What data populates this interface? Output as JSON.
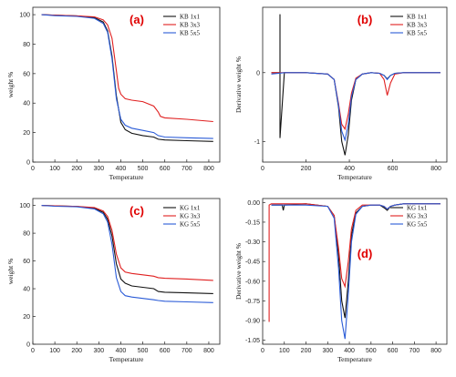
{
  "colors": {
    "black": "#111111",
    "red": "#e02020",
    "blue": "#2a5bd7",
    "label": "#e00000"
  },
  "chart_data": [
    {
      "type": "line",
      "panel_label": "(a)",
      "xlabel": "Temperature",
      "ylabel": "weight %",
      "xlim": [
        0,
        850
      ],
      "ylim": [
        0,
        105
      ],
      "xticks": [
        "0",
        "100",
        "200",
        "300",
        "400",
        "500",
        "600",
        "700",
        "800"
      ],
      "yticks": [
        "0",
        "20",
        "40",
        "60",
        "80",
        "100"
      ],
      "xtick_values": [
        0,
        100,
        200,
        300,
        400,
        500,
        600,
        700,
        800
      ],
      "ytick_values": [
        0,
        20,
        40,
        60,
        80,
        100
      ],
      "legend_position": "top-right",
      "series": [
        {
          "name": "KB 1x1",
          "color": "black",
          "x": [
            40,
            100,
            200,
            280,
            320,
            340,
            360,
            380,
            400,
            420,
            450,
            500,
            550,
            570,
            600,
            700,
            820
          ],
          "y": [
            100,
            99.6,
            99.2,
            98,
            95,
            89,
            72,
            45,
            27,
            22,
            19.5,
            18,
            17,
            15.5,
            15,
            14.5,
            14
          ]
        },
        {
          "name": "KB 3x3",
          "color": "red",
          "x": [
            40,
            100,
            200,
            280,
            320,
            340,
            360,
            380,
            390,
            400,
            420,
            450,
            500,
            550,
            570,
            580,
            600,
            700,
            820
          ],
          "y": [
            100,
            99.6,
            99.2,
            98.5,
            96.5,
            93,
            84,
            62,
            50,
            46,
            43,
            42,
            41,
            38,
            34,
            31,
            30,
            29,
            27.5
          ]
        },
        {
          "name": "KB 5x5",
          "color": "blue",
          "x": [
            40,
            100,
            200,
            280,
            320,
            340,
            360,
            380,
            400,
            420,
            450,
            500,
            550,
            570,
            600,
            700,
            820
          ],
          "y": [
            100,
            99.3,
            98.8,
            97.5,
            94,
            88,
            70,
            43,
            29,
            25,
            23,
            21.5,
            20,
            18,
            17,
            16.5,
            16
          ]
        }
      ]
    },
    {
      "type": "line",
      "panel_label": "(b)",
      "xlabel": "Temperature",
      "ylabel": "Derivative weight %",
      "xlim": [
        0,
        850
      ],
      "ylim": [
        -1.3,
        0.95
      ],
      "xticks": [
        "0",
        "200",
        "400",
        "600",
        "800"
      ],
      "yticks": [
        "-1",
        "0"
      ],
      "xtick_values": [
        0,
        200,
        400,
        600,
        800
      ],
      "ytick_values": [
        -1,
        0
      ],
      "legend_position": "top-right",
      "series": [
        {
          "name": "KB 1x1",
          "color": "black",
          "x": [
            40,
            80,
            80,
            80,
            100,
            200,
            300,
            330,
            350,
            365,
            380,
            395,
            410,
            430,
            460,
            500,
            540,
            560,
            575,
            590,
            610,
            650,
            820
          ],
          "y": [
            0,
            0,
            0.85,
            -0.95,
            0,
            0,
            -0.02,
            -0.1,
            -0.5,
            -1.0,
            -1.2,
            -0.9,
            -0.4,
            -0.1,
            -0.02,
            0,
            -0.01,
            -0.04,
            -0.09,
            -0.04,
            -0.01,
            0,
            0
          ]
        },
        {
          "name": "KB 3x3",
          "color": "red",
          "x": [
            40,
            100,
            200,
            300,
            330,
            350,
            365,
            380,
            395,
            410,
            430,
            460,
            500,
            540,
            560,
            575,
            590,
            610,
            650,
            820
          ],
          "y": [
            0,
            0,
            0,
            -0.02,
            -0.1,
            -0.45,
            -0.75,
            -0.82,
            -0.6,
            -0.3,
            -0.08,
            -0.02,
            0,
            -0.01,
            -0.1,
            -0.33,
            -0.15,
            -0.02,
            0,
            0
          ]
        },
        {
          "name": "KB 5x5",
          "color": "blue",
          "x": [
            40,
            100,
            200,
            300,
            330,
            350,
            365,
            380,
            395,
            410,
            430,
            460,
            500,
            540,
            560,
            575,
            590,
            610,
            650,
            820
          ],
          "y": [
            -0.02,
            0,
            0,
            -0.02,
            -0.1,
            -0.48,
            -0.85,
            -0.98,
            -0.75,
            -0.35,
            -0.1,
            -0.02,
            0,
            -0.01,
            -0.04,
            -0.1,
            -0.04,
            -0.01,
            0,
            0
          ]
        }
      ]
    },
    {
      "type": "line",
      "panel_label": "(c)",
      "xlabel": "Temperature",
      "ylabel": "weight %",
      "xlim": [
        0,
        850
      ],
      "ylim": [
        0,
        105
      ],
      "xticks": [
        "0",
        "100",
        "200",
        "300",
        "400",
        "500",
        "600",
        "700",
        "800"
      ],
      "yticks": [
        "0",
        "20",
        "40",
        "60",
        "80",
        "100"
      ],
      "xtick_values": [
        0,
        100,
        200,
        300,
        400,
        500,
        600,
        700,
        800
      ],
      "ytick_values": [
        0,
        20,
        40,
        60,
        80,
        100
      ],
      "legend_position": "top-right",
      "series": [
        {
          "name": "KG 1x1",
          "color": "black",
          "x": [
            40,
            100,
            200,
            280,
            320,
            340,
            360,
            380,
            400,
            420,
            450,
            500,
            550,
            570,
            600,
            700,
            820
          ],
          "y": [
            100,
            99.7,
            99.3,
            98,
            95,
            90,
            78,
            58,
            47,
            44,
            42,
            41,
            40,
            38,
            37.5,
            37,
            36.5
          ]
        },
        {
          "name": "KG 3x3",
          "color": "red",
          "x": [
            40,
            100,
            200,
            280,
            320,
            340,
            360,
            380,
            400,
            420,
            450,
            500,
            550,
            570,
            600,
            700,
            820
          ],
          "y": [
            100,
            99.7,
            99.3,
            98.5,
            96,
            92,
            82,
            65,
            55,
            52,
            51,
            50,
            49,
            48,
            47.5,
            47,
            46
          ]
        },
        {
          "name": "KG 5x5",
          "color": "blue",
          "x": [
            40,
            100,
            200,
            280,
            320,
            340,
            360,
            380,
            400,
            420,
            450,
            500,
            550,
            570,
            600,
            700,
            820
          ],
          "y": [
            100,
            99.4,
            99,
            97.5,
            94,
            88,
            72,
            48,
            38,
            35,
            34,
            33,
            32,
            31.5,
            31,
            30.5,
            30
          ]
        }
      ]
    },
    {
      "type": "line",
      "panel_label": "(d)",
      "xlabel": "Temperature",
      "ylabel": "Derivative weight %",
      "xlim": [
        0,
        850
      ],
      "ylim": [
        -1.08,
        0.03
      ],
      "xticks": [
        "0",
        "100",
        "200",
        "300",
        "400",
        "500",
        "600",
        "700",
        "800"
      ],
      "yticks": [
        "0.00",
        "-0.15",
        "-0.30",
        "-0.45",
        "-0.60",
        "-0.75",
        "-0.90",
        "-1.05"
      ],
      "xtick_values": [
        0,
        100,
        200,
        300,
        400,
        500,
        600,
        700,
        800
      ],
      "ytick_values": [
        0,
        -0.15,
        -0.3,
        -0.45,
        -0.6,
        -0.75,
        -0.9,
        -1.05
      ],
      "legend_position": "top-right",
      "series": [
        {
          "name": "KG 1x1",
          "color": "black",
          "x": [
            40,
            60,
            90,
            95,
            100,
            200,
            300,
            330,
            350,
            365,
            380,
            395,
            410,
            430,
            460,
            500,
            540,
            560,
            575,
            590,
            610,
            650,
            820
          ],
          "y": [
            -0.02,
            -0.02,
            -0.02,
            -0.06,
            -0.02,
            -0.01,
            -0.03,
            -0.1,
            -0.4,
            -0.75,
            -0.88,
            -0.6,
            -0.25,
            -0.08,
            -0.03,
            -0.02,
            -0.02,
            -0.04,
            -0.06,
            -0.03,
            -0.02,
            -0.01,
            -0.01
          ]
        },
        {
          "name": "KG 3x3",
          "color": "red",
          "x": [
            30,
            30,
            40,
            100,
            200,
            300,
            330,
            350,
            365,
            380,
            395,
            410,
            430,
            460,
            500,
            540,
            560,
            575,
            590,
            610,
            650,
            820
          ],
          "y": [
            -0.91,
            -0.02,
            -0.01,
            -0.01,
            -0.01,
            -0.03,
            -0.1,
            -0.35,
            -0.58,
            -0.64,
            -0.45,
            -0.2,
            -0.06,
            -0.02,
            -0.02,
            -0.02,
            -0.03,
            -0.05,
            -0.03,
            -0.02,
            -0.01,
            -0.01
          ]
        },
        {
          "name": "KG 5x5",
          "color": "blue",
          "x": [
            40,
            100,
            200,
            300,
            330,
            350,
            365,
            380,
            395,
            410,
            430,
            460,
            500,
            540,
            560,
            575,
            590,
            610,
            650,
            820
          ],
          "y": [
            -0.02,
            -0.02,
            -0.02,
            -0.03,
            -0.12,
            -0.5,
            -0.9,
            -1.04,
            -0.7,
            -0.3,
            -0.09,
            -0.03,
            -0.02,
            -0.02,
            -0.03,
            -0.05,
            -0.03,
            -0.02,
            -0.01,
            -0.01
          ]
        }
      ]
    }
  ]
}
